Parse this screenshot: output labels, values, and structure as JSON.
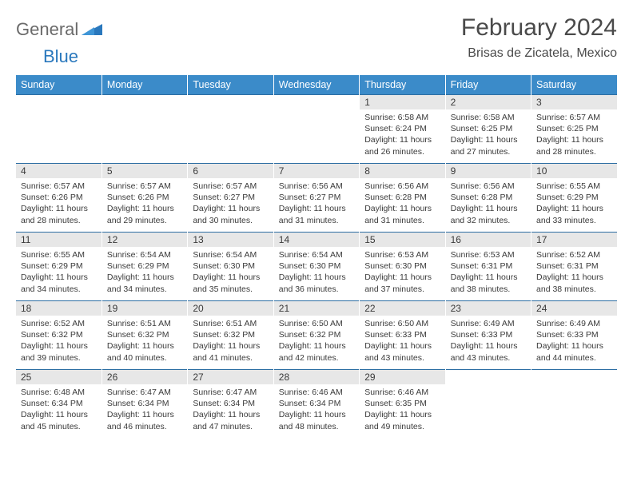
{
  "logo": {
    "text1": "General",
    "text2": "Blue"
  },
  "title": "February 2024",
  "location": "Brisas de Zicatela, Mexico",
  "colors": {
    "header_bg": "#3b8bc9",
    "header_fg": "#ffffff",
    "daynum_bg": "#e7e7e7",
    "rule": "#2c6ea3",
    "text": "#3a3a3a",
    "logo_gray": "#6a6a6a",
    "logo_blue": "#2a78bd"
  },
  "weekdays": [
    "Sunday",
    "Monday",
    "Tuesday",
    "Wednesday",
    "Thursday",
    "Friday",
    "Saturday"
  ],
  "weeks": [
    [
      {
        "n": "",
        "sr": "",
        "ss": "",
        "dl": ""
      },
      {
        "n": "",
        "sr": "",
        "ss": "",
        "dl": ""
      },
      {
        "n": "",
        "sr": "",
        "ss": "",
        "dl": ""
      },
      {
        "n": "",
        "sr": "",
        "ss": "",
        "dl": ""
      },
      {
        "n": "1",
        "sr": "Sunrise: 6:58 AM",
        "ss": "Sunset: 6:24 PM",
        "dl": "Daylight: 11 hours and 26 minutes."
      },
      {
        "n": "2",
        "sr": "Sunrise: 6:58 AM",
        "ss": "Sunset: 6:25 PM",
        "dl": "Daylight: 11 hours and 27 minutes."
      },
      {
        "n": "3",
        "sr": "Sunrise: 6:57 AM",
        "ss": "Sunset: 6:25 PM",
        "dl": "Daylight: 11 hours and 28 minutes."
      }
    ],
    [
      {
        "n": "4",
        "sr": "Sunrise: 6:57 AM",
        "ss": "Sunset: 6:26 PM",
        "dl": "Daylight: 11 hours and 28 minutes."
      },
      {
        "n": "5",
        "sr": "Sunrise: 6:57 AM",
        "ss": "Sunset: 6:26 PM",
        "dl": "Daylight: 11 hours and 29 minutes."
      },
      {
        "n": "6",
        "sr": "Sunrise: 6:57 AM",
        "ss": "Sunset: 6:27 PM",
        "dl": "Daylight: 11 hours and 30 minutes."
      },
      {
        "n": "7",
        "sr": "Sunrise: 6:56 AM",
        "ss": "Sunset: 6:27 PM",
        "dl": "Daylight: 11 hours and 31 minutes."
      },
      {
        "n": "8",
        "sr": "Sunrise: 6:56 AM",
        "ss": "Sunset: 6:28 PM",
        "dl": "Daylight: 11 hours and 31 minutes."
      },
      {
        "n": "9",
        "sr": "Sunrise: 6:56 AM",
        "ss": "Sunset: 6:28 PM",
        "dl": "Daylight: 11 hours and 32 minutes."
      },
      {
        "n": "10",
        "sr": "Sunrise: 6:55 AM",
        "ss": "Sunset: 6:29 PM",
        "dl": "Daylight: 11 hours and 33 minutes."
      }
    ],
    [
      {
        "n": "11",
        "sr": "Sunrise: 6:55 AM",
        "ss": "Sunset: 6:29 PM",
        "dl": "Daylight: 11 hours and 34 minutes."
      },
      {
        "n": "12",
        "sr": "Sunrise: 6:54 AM",
        "ss": "Sunset: 6:29 PM",
        "dl": "Daylight: 11 hours and 34 minutes."
      },
      {
        "n": "13",
        "sr": "Sunrise: 6:54 AM",
        "ss": "Sunset: 6:30 PM",
        "dl": "Daylight: 11 hours and 35 minutes."
      },
      {
        "n": "14",
        "sr": "Sunrise: 6:54 AM",
        "ss": "Sunset: 6:30 PM",
        "dl": "Daylight: 11 hours and 36 minutes."
      },
      {
        "n": "15",
        "sr": "Sunrise: 6:53 AM",
        "ss": "Sunset: 6:30 PM",
        "dl": "Daylight: 11 hours and 37 minutes."
      },
      {
        "n": "16",
        "sr": "Sunrise: 6:53 AM",
        "ss": "Sunset: 6:31 PM",
        "dl": "Daylight: 11 hours and 38 minutes."
      },
      {
        "n": "17",
        "sr": "Sunrise: 6:52 AM",
        "ss": "Sunset: 6:31 PM",
        "dl": "Daylight: 11 hours and 38 minutes."
      }
    ],
    [
      {
        "n": "18",
        "sr": "Sunrise: 6:52 AM",
        "ss": "Sunset: 6:32 PM",
        "dl": "Daylight: 11 hours and 39 minutes."
      },
      {
        "n": "19",
        "sr": "Sunrise: 6:51 AM",
        "ss": "Sunset: 6:32 PM",
        "dl": "Daylight: 11 hours and 40 minutes."
      },
      {
        "n": "20",
        "sr": "Sunrise: 6:51 AM",
        "ss": "Sunset: 6:32 PM",
        "dl": "Daylight: 11 hours and 41 minutes."
      },
      {
        "n": "21",
        "sr": "Sunrise: 6:50 AM",
        "ss": "Sunset: 6:32 PM",
        "dl": "Daylight: 11 hours and 42 minutes."
      },
      {
        "n": "22",
        "sr": "Sunrise: 6:50 AM",
        "ss": "Sunset: 6:33 PM",
        "dl": "Daylight: 11 hours and 43 minutes."
      },
      {
        "n": "23",
        "sr": "Sunrise: 6:49 AM",
        "ss": "Sunset: 6:33 PM",
        "dl": "Daylight: 11 hours and 43 minutes."
      },
      {
        "n": "24",
        "sr": "Sunrise: 6:49 AM",
        "ss": "Sunset: 6:33 PM",
        "dl": "Daylight: 11 hours and 44 minutes."
      }
    ],
    [
      {
        "n": "25",
        "sr": "Sunrise: 6:48 AM",
        "ss": "Sunset: 6:34 PM",
        "dl": "Daylight: 11 hours and 45 minutes."
      },
      {
        "n": "26",
        "sr": "Sunrise: 6:47 AM",
        "ss": "Sunset: 6:34 PM",
        "dl": "Daylight: 11 hours and 46 minutes."
      },
      {
        "n": "27",
        "sr": "Sunrise: 6:47 AM",
        "ss": "Sunset: 6:34 PM",
        "dl": "Daylight: 11 hours and 47 minutes."
      },
      {
        "n": "28",
        "sr": "Sunrise: 6:46 AM",
        "ss": "Sunset: 6:34 PM",
        "dl": "Daylight: 11 hours and 48 minutes."
      },
      {
        "n": "29",
        "sr": "Sunrise: 6:46 AM",
        "ss": "Sunset: 6:35 PM",
        "dl": "Daylight: 11 hours and 49 minutes."
      },
      {
        "n": "",
        "sr": "",
        "ss": "",
        "dl": ""
      },
      {
        "n": "",
        "sr": "",
        "ss": "",
        "dl": ""
      }
    ]
  ]
}
